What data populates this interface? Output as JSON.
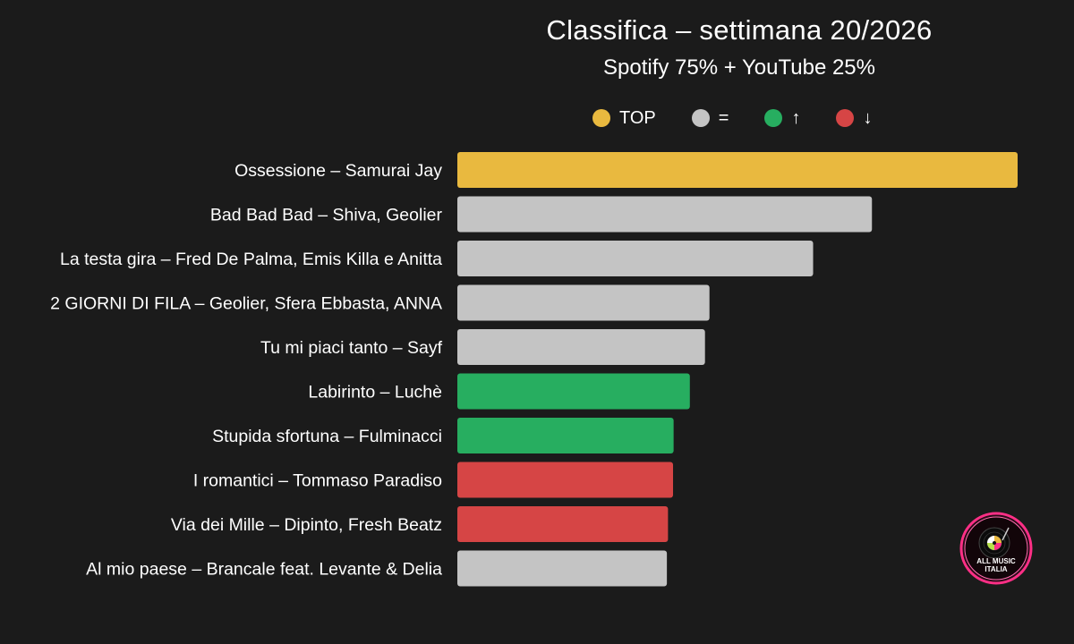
{
  "chart_data": {
    "type": "bar",
    "orientation": "horizontal",
    "title": "Classifica – settimana 20/2026",
    "subtitle": "Spotify 75% + YouTube 25%",
    "legend": {
      "placement": "top",
      "entries": [
        {
          "label": "TOP",
          "color": "#e9b93f"
        },
        {
          "label": "=",
          "color": "#c4c4c4"
        },
        {
          "label": "↑",
          "color": "#27ae60"
        },
        {
          "label": "↓",
          "color": "#d64545"
        }
      ]
    },
    "categories": [
      "Ossessione – Samurai Jay",
      "Bad Bad Bad – Shiva, Geolier",
      "La testa gira – Fred De Palma, Emis Killa e Anitta",
      "2 GIORNI DI FILA – Geolier, Sfera Ebbasta, ANNA",
      "Tu mi piaci tanto – Sayf",
      "Labirinto – Luchè",
      "Stupida sfortuna – Fulminacci",
      "I romantici – Tommaso Paradiso",
      "Via dei Mille – Dipinto, Fresh Beatz",
      "Al mio paese – Brancale feat. Levante & Delia"
    ],
    "values": [
      100,
      74,
      63.5,
      45,
      44.2,
      41.5,
      38.6,
      38.5,
      37.6,
      37.4
    ],
    "status": [
      "TOP",
      "=",
      "=",
      "=",
      "=",
      "↑",
      "↑",
      "↓",
      "↓",
      "="
    ],
    "xlim": [
      0,
      100
    ],
    "grid": false,
    "axes_visible": false
  },
  "logo": {
    "line1": "ALL MUSIC",
    "line2": "ITALIA"
  }
}
